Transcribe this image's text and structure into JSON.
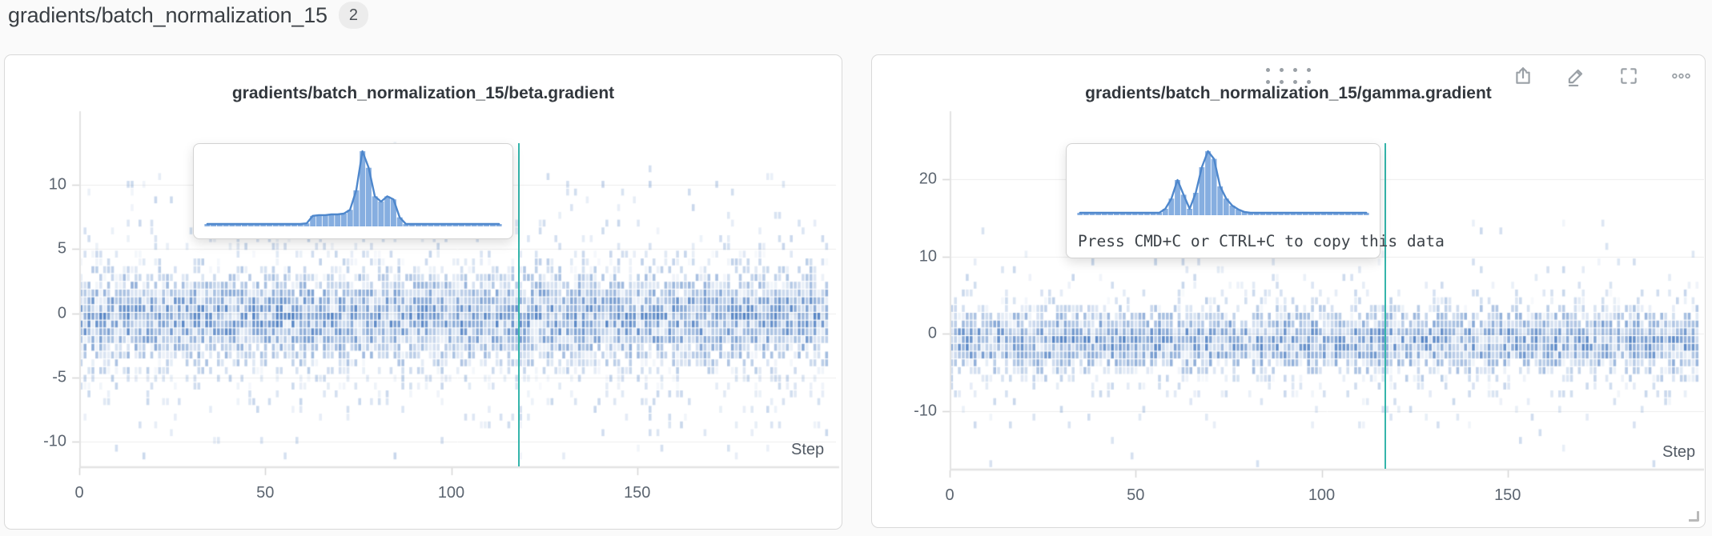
{
  "header": {
    "title": "gradients/batch_normalization_15",
    "count": "2"
  },
  "toolbar": {
    "icons": [
      {
        "name": "drag-handle-icon"
      },
      {
        "name": "share-icon"
      },
      {
        "name": "edit-pencil-icon"
      },
      {
        "name": "fullscreen-icon"
      },
      {
        "name": "overflow-menu-icon"
      }
    ]
  },
  "colors": {
    "accent_teal": "#35b5ab",
    "heatmap_blue": "rgba(62,115,188,1)",
    "histogram_fill": "#689ad8",
    "histogram_stroke": "#4e87cc",
    "panel_border": "#d9d9d9",
    "axis_line": "#e3e3e3",
    "gridline": "#ededed",
    "tick_text": "#5c6570"
  },
  "chart_data": [
    {
      "type": "heatmap",
      "title": "gradients/batch_normalization_15/beta.gradient",
      "xlabel": "Step",
      "x_ticks": [
        0,
        50,
        100,
        150
      ],
      "xlim": [
        0,
        191
      ],
      "y_ticks": [
        10,
        5,
        0,
        -5,
        -10
      ],
      "ylim": [
        -11.9,
        13.35
      ],
      "grid": true,
      "cursor_step": 118,
      "density": {
        "seed": 11,
        "center": -0.4,
        "sigma_core": 2.2,
        "fill_core": 0.95,
        "sigma_tail": 4.2,
        "fill_tail": 0.34,
        "outlier_rate": 0.009,
        "outlier_max": 11.5
      },
      "tooltip_histogram": [
        2,
        2,
        2,
        2,
        2,
        2,
        2,
        2,
        2,
        2,
        2,
        2,
        2,
        2,
        2,
        3,
        4,
        14,
        15,
        15,
        16,
        16,
        17,
        22,
        48,
        100,
        78,
        40,
        33,
        40,
        36,
        12,
        3,
        2,
        2,
        2,
        2,
        2,
        2,
        2,
        2,
        2,
        2,
        2,
        2,
        2,
        2,
        2
      ]
    },
    {
      "type": "heatmap",
      "title": "gradients/batch_normalization_15/gamma.gradient",
      "xlabel": "Step",
      "x_ticks": [
        0,
        50,
        100,
        150
      ],
      "xlim": [
        0,
        191
      ],
      "y_ticks": [
        20,
        10,
        0,
        -10
      ],
      "ylim": [
        -17.5,
        24.9
      ],
      "grid": true,
      "cursor_step": 117,
      "density": {
        "seed": 29,
        "center": -0.9,
        "sigma_core": 2.6,
        "fill_core": 0.92,
        "sigma_tail": 4.8,
        "fill_tail": 0.3,
        "outlier_rate": 0.007,
        "outlier_max": 18.5
      },
      "tooltip_histogram": [
        2,
        2,
        2,
        2,
        2,
        2,
        2,
        2,
        2,
        2,
        2,
        2,
        2,
        3,
        10,
        26,
        55,
        32,
        10,
        35,
        75,
        100,
        88,
        45,
        26,
        15,
        9,
        5,
        3,
        2,
        2,
        2,
        2,
        2,
        2,
        2,
        2,
        2,
        2,
        2,
        2,
        2,
        2,
        2,
        2,
        2,
        2,
        2
      ],
      "tooltip_text": "Press CMD+C or CTRL+C to copy this data"
    }
  ]
}
